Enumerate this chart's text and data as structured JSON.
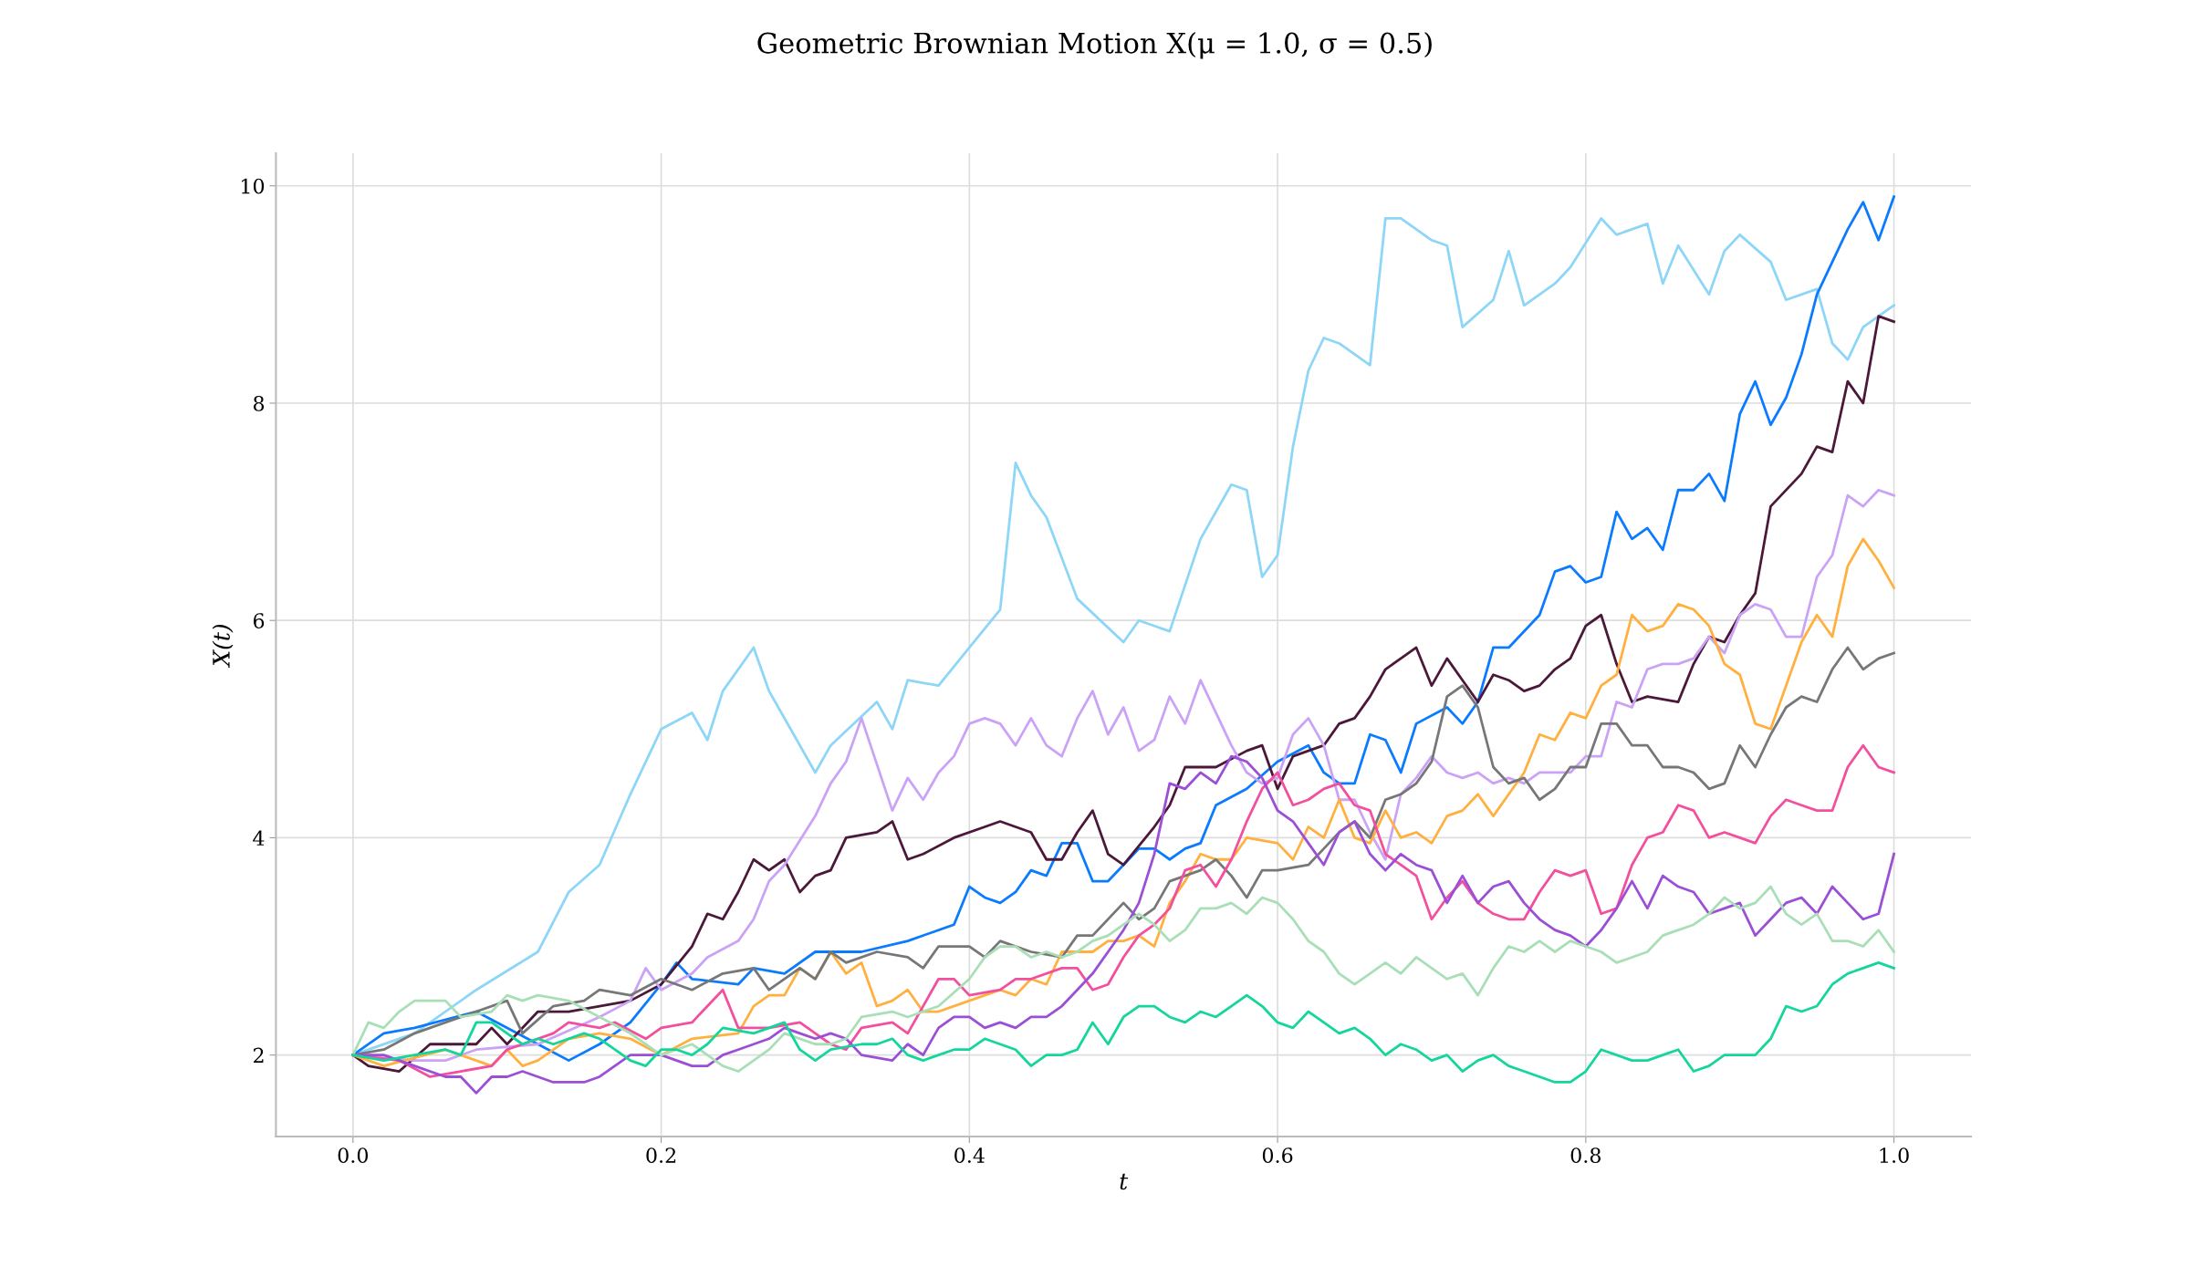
{
  "chart_data": {
    "type": "line",
    "title": "Geometric Brownian Motion X(μ = 1.0, σ = 0.5)",
    "xlabel": "t",
    "ylabel": "X(t)",
    "xlim": [
      -0.05,
      1.05
    ],
    "ylim": [
      1.25,
      10.3
    ],
    "xticks": [
      {
        "value": 0,
        "label": "0.0"
      },
      0.2,
      0.4,
      0.6,
      0.8,
      {
        "value": 1,
        "label": "1.0"
      }
    ],
    "yticks": [
      2,
      4,
      6,
      8,
      10
    ],
    "grid": true,
    "marker": "none",
    "line_style": "solid",
    "series": [
      {
        "color": "#8dd6f7",
        "x": [
          0,
          0.04,
          0.08,
          0.12,
          0.14,
          0.16,
          0.18,
          0.2,
          0.22,
          0.23,
          0.24,
          0.26,
          0.27,
          0.3,
          0.31,
          0.34,
          0.35,
          0.36,
          0.38,
          0.4,
          0.42,
          0.43,
          0.44,
          0.45,
          0.47,
          0.5,
          0.51,
          0.53,
          0.55,
          0.57,
          0.58,
          0.59,
          0.6,
          0.61,
          0.62,
          0.63,
          0.64,
          0.66,
          0.67,
          0.68,
          0.7,
          0.71,
          0.72,
          0.74,
          0.75,
          0.76,
          0.78,
          0.79,
          0.81,
          0.82,
          0.84,
          0.85,
          0.86,
          0.88,
          0.89,
          0.9,
          0.92,
          0.93,
          0.95,
          0.96,
          0.97,
          0.98,
          1.0
        ],
        "values": [
          2,
          2.2,
          2.6,
          2.95,
          3.5,
          3.75,
          4.4,
          5.0,
          5.15,
          4.9,
          5.35,
          5.75,
          5.35,
          4.6,
          4.85,
          5.25,
          5.0,
          5.45,
          5.4,
          5.75,
          6.1,
          7.45,
          7.15,
          6.95,
          6.2,
          5.8,
          6.0,
          5.9,
          6.75,
          7.25,
          7.2,
          6.4,
          6.6,
          7.6,
          8.3,
          8.6,
          8.55,
          8.35,
          9.7,
          9.7,
          9.5,
          9.45,
          8.7,
          8.95,
          9.4,
          8.9,
          9.1,
          9.25,
          9.7,
          9.55,
          9.65,
          9.1,
          9.45,
          9.0,
          9.4,
          9.55,
          9.3,
          8.95,
          9.05,
          8.55,
          8.4,
          8.7,
          8.9
        ]
      },
      {
        "color": "#0a7bff",
        "x": [
          0,
          0.02,
          0.04,
          0.08,
          0.12,
          0.14,
          0.16,
          0.18,
          0.2,
          0.21,
          0.22,
          0.25,
          0.26,
          0.28,
          0.3,
          0.33,
          0.36,
          0.39,
          0.4,
          0.41,
          0.42,
          0.43,
          0.44,
          0.45,
          0.46,
          0.47,
          0.48,
          0.49,
          0.5,
          0.51,
          0.52,
          0.53,
          0.54,
          0.55,
          0.56,
          0.58,
          0.6,
          0.62,
          0.63,
          0.64,
          0.65,
          0.66,
          0.67,
          0.68,
          0.69,
          0.71,
          0.72,
          0.73,
          0.74,
          0.75,
          0.77,
          0.78,
          0.79,
          0.8,
          0.81,
          0.82,
          0.83,
          0.84,
          0.85,
          0.86,
          0.87,
          0.88,
          0.89,
          0.9,
          0.91,
          0.92,
          0.93,
          0.94,
          0.95,
          0.96,
          0.97,
          0.98,
          0.99,
          1.0
        ],
        "values": [
          2,
          2.2,
          2.25,
          2.4,
          2.1,
          1.95,
          2.1,
          2.3,
          2.65,
          2.85,
          2.7,
          2.65,
          2.8,
          2.75,
          2.95,
          2.95,
          3.05,
          3.2,
          3.55,
          3.45,
          3.4,
          3.5,
          3.7,
          3.65,
          3.95,
          3.95,
          3.6,
          3.6,
          3.75,
          3.9,
          3.9,
          3.8,
          3.9,
          3.95,
          4.3,
          4.45,
          4.7,
          4.85,
          4.6,
          4.5,
          4.5,
          4.95,
          4.9,
          4.6,
          5.05,
          5.2,
          5.05,
          5.25,
          5.75,
          5.75,
          6.05,
          6.45,
          6.5,
          6.35,
          6.4,
          7.0,
          6.75,
          6.85,
          6.65,
          7.2,
          7.2,
          7.35,
          7.1,
          7.9,
          8.2,
          7.8,
          8.05,
          8.45,
          9.0,
          9.3,
          9.6,
          9.85,
          9.5,
          9.9
        ]
      },
      {
        "color": "#4b1839",
        "x": [
          0,
          0.01,
          0.03,
          0.05,
          0.08,
          0.09,
          0.1,
          0.12,
          0.14,
          0.16,
          0.18,
          0.2,
          0.22,
          0.23,
          0.24,
          0.25,
          0.26,
          0.27,
          0.28,
          0.29,
          0.3,
          0.31,
          0.32,
          0.34,
          0.35,
          0.36,
          0.37,
          0.39,
          0.41,
          0.42,
          0.43,
          0.44,
          0.45,
          0.46,
          0.47,
          0.48,
          0.49,
          0.5,
          0.52,
          0.53,
          0.54,
          0.56,
          0.58,
          0.59,
          0.6,
          0.61,
          0.62,
          0.63,
          0.64,
          0.65,
          0.66,
          0.67,
          0.68,
          0.69,
          0.7,
          0.71,
          0.72,
          0.73,
          0.74,
          0.75,
          0.76,
          0.77,
          0.78,
          0.79,
          0.8,
          0.81,
          0.82,
          0.83,
          0.84,
          0.86,
          0.87,
          0.88,
          0.89,
          0.9,
          0.91,
          0.92,
          0.94,
          0.95,
          0.96,
          0.97,
          0.98,
          0.99,
          1.0
        ],
        "values": [
          2,
          1.9,
          1.85,
          2.1,
          2.1,
          2.25,
          2.1,
          2.4,
          2.4,
          2.45,
          2.5,
          2.65,
          3.0,
          3.3,
          3.25,
          3.5,
          3.8,
          3.7,
          3.8,
          3.5,
          3.65,
          3.7,
          4.0,
          4.05,
          4.15,
          3.8,
          3.85,
          4.0,
          4.1,
          4.15,
          4.1,
          4.05,
          3.8,
          3.8,
          4.05,
          4.25,
          3.85,
          3.75,
          4.1,
          4.3,
          4.65,
          4.65,
          4.8,
          4.85,
          4.45,
          4.75,
          4.8,
          4.85,
          5.05,
          5.1,
          5.3,
          5.55,
          5.65,
          5.75,
          5.4,
          5.65,
          5.45,
          5.25,
          5.5,
          5.45,
          5.35,
          5.4,
          5.55,
          5.65,
          5.95,
          6.05,
          5.6,
          5.25,
          5.3,
          5.25,
          5.6,
          5.85,
          5.8,
          6.05,
          6.25,
          7.05,
          7.35,
          7.6,
          7.55,
          8.2,
          8.0,
          8.8,
          8.75
        ]
      },
      {
        "color": "#cba3f6",
        "x": [
          0,
          0.04,
          0.06,
          0.08,
          0.12,
          0.16,
          0.18,
          0.19,
          0.2,
          0.22,
          0.23,
          0.25,
          0.26,
          0.27,
          0.28,
          0.3,
          0.31,
          0.32,
          0.33,
          0.35,
          0.36,
          0.37,
          0.38,
          0.39,
          0.4,
          0.41,
          0.42,
          0.43,
          0.44,
          0.45,
          0.46,
          0.47,
          0.48,
          0.49,
          0.5,
          0.51,
          0.52,
          0.53,
          0.54,
          0.55,
          0.56,
          0.57,
          0.58,
          0.59,
          0.6,
          0.61,
          0.62,
          0.63,
          0.64,
          0.65,
          0.66,
          0.67,
          0.68,
          0.69,
          0.7,
          0.71,
          0.72,
          0.73,
          0.74,
          0.75,
          0.76,
          0.77,
          0.79,
          0.8,
          0.81,
          0.82,
          0.83,
          0.84,
          0.85,
          0.86,
          0.87,
          0.88,
          0.89,
          0.9,
          0.91,
          0.92,
          0.93,
          0.94,
          0.95,
          0.96,
          0.97,
          0.98,
          0.99,
          1.0
        ],
        "values": [
          2,
          1.95,
          1.95,
          2.05,
          2.1,
          2.35,
          2.5,
          2.8,
          2.6,
          2.75,
          2.9,
          3.05,
          3.25,
          3.6,
          3.75,
          4.2,
          4.5,
          4.7,
          5.1,
          4.25,
          4.55,
          4.35,
          4.6,
          4.75,
          5.05,
          5.1,
          5.05,
          4.85,
          5.1,
          4.85,
          4.75,
          5.1,
          5.35,
          4.95,
          5.2,
          4.8,
          4.9,
          5.3,
          5.05,
          5.45,
          5.15,
          4.85,
          4.6,
          4.5,
          4.55,
          4.95,
          5.1,
          4.85,
          4.35,
          4.35,
          4.05,
          3.8,
          4.4,
          4.55,
          4.75,
          4.6,
          4.55,
          4.6,
          4.5,
          4.55,
          4.5,
          4.6,
          4.6,
          4.75,
          4.75,
          5.25,
          5.2,
          5.55,
          5.6,
          5.6,
          5.65,
          5.85,
          5.7,
          6.05,
          6.15,
          6.1,
          5.85,
          5.85,
          6.4,
          6.6,
          7.15,
          7.05,
          7.2,
          7.15
        ]
      },
      {
        "color": "#ffb03f",
        "x": [
          0,
          0.02,
          0.06,
          0.09,
          0.1,
          0.11,
          0.12,
          0.14,
          0.16,
          0.18,
          0.2,
          0.22,
          0.25,
          0.26,
          0.27,
          0.28,
          0.29,
          0.3,
          0.31,
          0.32,
          0.33,
          0.34,
          0.35,
          0.36,
          0.37,
          0.38,
          0.4,
          0.42,
          0.43,
          0.44,
          0.45,
          0.46,
          0.48,
          0.49,
          0.5,
          0.51,
          0.52,
          0.53,
          0.54,
          0.55,
          0.56,
          0.57,
          0.58,
          0.6,
          0.61,
          0.62,
          0.63,
          0.64,
          0.65,
          0.66,
          0.67,
          0.68,
          0.69,
          0.7,
          0.71,
          0.72,
          0.73,
          0.74,
          0.75,
          0.76,
          0.77,
          0.78,
          0.79,
          0.8,
          0.81,
          0.82,
          0.83,
          0.84,
          0.85,
          0.86,
          0.87,
          0.88,
          0.89,
          0.9,
          0.91,
          0.92,
          0.93,
          0.94,
          0.95,
          0.96,
          0.97,
          0.98,
          0.99,
          1.0
        ],
        "values": [
          2,
          1.9,
          2.05,
          1.9,
          2.05,
          1.9,
          1.95,
          2.15,
          2.2,
          2.15,
          2.0,
          2.15,
          2.2,
          2.45,
          2.55,
          2.55,
          2.8,
          2.7,
          2.95,
          2.75,
          2.85,
          2.45,
          2.5,
          2.6,
          2.4,
          2.4,
          2.5,
          2.6,
          2.55,
          2.7,
          2.65,
          2.95,
          2.95,
          3.05,
          3.05,
          3.1,
          3.0,
          3.4,
          3.6,
          3.85,
          3.8,
          3.8,
          4.0,
          3.95,
          3.8,
          4.1,
          4.0,
          4.35,
          4.0,
          3.95,
          4.25,
          4.0,
          4.05,
          3.95,
          4.2,
          4.25,
          4.4,
          4.2,
          4.4,
          4.6,
          4.95,
          4.9,
          5.15,
          5.1,
          5.4,
          5.5,
          6.05,
          5.9,
          5.95,
          6.15,
          6.1,
          5.95,
          5.6,
          5.5,
          5.05,
          5.0,
          5.4,
          5.8,
          6.05,
          5.85,
          6.5,
          6.75,
          6.55,
          6.3
        ]
      },
      {
        "color": "#777777",
        "x": [
          0,
          0.02,
          0.04,
          0.06,
          0.08,
          0.1,
          0.11,
          0.13,
          0.15,
          0.16,
          0.18,
          0.2,
          0.22,
          0.24,
          0.26,
          0.27,
          0.29,
          0.3,
          0.31,
          0.32,
          0.34,
          0.36,
          0.37,
          0.38,
          0.4,
          0.41,
          0.42,
          0.44,
          0.46,
          0.47,
          0.48,
          0.5,
          0.51,
          0.52,
          0.53,
          0.55,
          0.56,
          0.57,
          0.58,
          0.59,
          0.6,
          0.62,
          0.63,
          0.64,
          0.65,
          0.66,
          0.67,
          0.68,
          0.69,
          0.7,
          0.71,
          0.72,
          0.73,
          0.74,
          0.75,
          0.76,
          0.77,
          0.78,
          0.79,
          0.8,
          0.81,
          0.82,
          0.83,
          0.84,
          0.85,
          0.86,
          0.87,
          0.88,
          0.89,
          0.9,
          0.91,
          0.92,
          0.93,
          0.94,
          0.95,
          0.96,
          0.97,
          0.98,
          0.99,
          1.0
        ],
        "values": [
          2,
          2.05,
          2.2,
          2.3,
          2.4,
          2.5,
          2.2,
          2.45,
          2.5,
          2.6,
          2.55,
          2.7,
          2.6,
          2.75,
          2.8,
          2.6,
          2.8,
          2.7,
          2.95,
          2.85,
          2.95,
          2.9,
          2.8,
          3.0,
          3.0,
          2.9,
          3.05,
          2.95,
          2.9,
          3.1,
          3.1,
          3.4,
          3.25,
          3.35,
          3.6,
          3.7,
          3.8,
          3.65,
          3.45,
          3.7,
          3.7,
          3.75,
          3.9,
          4.05,
          4.15,
          4.0,
          4.35,
          4.4,
          4.5,
          4.7,
          5.3,
          5.4,
          5.2,
          4.65,
          4.5,
          4.55,
          4.35,
          4.45,
          4.65,
          4.65,
          5.05,
          5.05,
          4.85,
          4.85,
          4.65,
          4.65,
          4.6,
          4.45,
          4.5,
          4.85,
          4.65,
          4.95,
          5.2,
          5.3,
          5.25,
          5.55,
          5.75,
          5.55,
          5.65,
          5.7
        ]
      },
      {
        "color": "#f2509e",
        "x": [
          0,
          0.03,
          0.05,
          0.07,
          0.09,
          0.1,
          0.11,
          0.13,
          0.14,
          0.16,
          0.17,
          0.19,
          0.2,
          0.22,
          0.23,
          0.24,
          0.25,
          0.27,
          0.29,
          0.3,
          0.31,
          0.32,
          0.33,
          0.35,
          0.36,
          0.37,
          0.38,
          0.39,
          0.4,
          0.42,
          0.43,
          0.44,
          0.46,
          0.47,
          0.48,
          0.49,
          0.5,
          0.51,
          0.52,
          0.53,
          0.54,
          0.55,
          0.56,
          0.57,
          0.58,
          0.59,
          0.6,
          0.61,
          0.62,
          0.63,
          0.64,
          0.65,
          0.66,
          0.67,
          0.68,
          0.69,
          0.7,
          0.71,
          0.72,
          0.73,
          0.74,
          0.75,
          0.76,
          0.77,
          0.78,
          0.79,
          0.8,
          0.81,
          0.82,
          0.83,
          0.84,
          0.85,
          0.86,
          0.87,
          0.88,
          0.89,
          0.9,
          0.91,
          0.92,
          0.93,
          0.94,
          0.95,
          0.96,
          0.97,
          0.98,
          0.99,
          1.0
        ],
        "values": [
          2,
          1.95,
          1.8,
          1.85,
          1.9,
          2.05,
          2.1,
          2.2,
          2.3,
          2.25,
          2.3,
          2.15,
          2.25,
          2.3,
          2.45,
          2.6,
          2.25,
          2.25,
          2.3,
          2.2,
          2.1,
          2.05,
          2.25,
          2.3,
          2.2,
          2.45,
          2.7,
          2.7,
          2.55,
          2.6,
          2.7,
          2.7,
          2.8,
          2.8,
          2.6,
          2.65,
          2.9,
          3.1,
          3.2,
          3.35,
          3.7,
          3.75,
          3.55,
          3.8,
          4.15,
          4.45,
          4.6,
          4.3,
          4.35,
          4.45,
          4.5,
          4.3,
          4.25,
          3.85,
          3.75,
          3.65,
          3.25,
          3.45,
          3.6,
          3.4,
          3.3,
          3.25,
          3.25,
          3.5,
          3.7,
          3.65,
          3.7,
          3.3,
          3.35,
          3.75,
          4.0,
          4.05,
          4.3,
          4.25,
          4.0,
          4.05,
          4.0,
          3.95,
          4.2,
          4.35,
          4.3,
          4.25,
          4.25,
          4.65,
          4.85,
          4.65,
          4.6
        ]
      },
      {
        "color": "#9b4fd6",
        "x": [
          0,
          0.02,
          0.04,
          0.06,
          0.07,
          0.08,
          0.09,
          0.1,
          0.11,
          0.12,
          0.13,
          0.15,
          0.16,
          0.18,
          0.2,
          0.22,
          0.23,
          0.24,
          0.25,
          0.27,
          0.28,
          0.29,
          0.3,
          0.31,
          0.32,
          0.33,
          0.35,
          0.36,
          0.37,
          0.38,
          0.39,
          0.4,
          0.41,
          0.42,
          0.43,
          0.44,
          0.45,
          0.46,
          0.47,
          0.48,
          0.49,
          0.5,
          0.51,
          0.52,
          0.53,
          0.54,
          0.55,
          0.56,
          0.57,
          0.58,
          0.59,
          0.6,
          0.61,
          0.62,
          0.63,
          0.64,
          0.65,
          0.66,
          0.67,
          0.68,
          0.69,
          0.7,
          0.71,
          0.72,
          0.73,
          0.74,
          0.75,
          0.76,
          0.77,
          0.78,
          0.79,
          0.8,
          0.81,
          0.82,
          0.83,
          0.84,
          0.85,
          0.86,
          0.87,
          0.88,
          0.89,
          0.9,
          0.91,
          0.92,
          0.93,
          0.94,
          0.95,
          0.96,
          0.97,
          0.98,
          0.99,
          1.0
        ],
        "values": [
          2,
          2.0,
          1.9,
          1.8,
          1.8,
          1.65,
          1.8,
          1.8,
          1.85,
          1.8,
          1.75,
          1.75,
          1.8,
          2.0,
          2.0,
          1.9,
          1.9,
          2.0,
          2.05,
          2.15,
          2.25,
          2.2,
          2.15,
          2.2,
          2.15,
          2.0,
          1.95,
          2.1,
          2.0,
          2.25,
          2.35,
          2.35,
          2.25,
          2.3,
          2.25,
          2.35,
          2.35,
          2.45,
          2.6,
          2.75,
          2.95,
          3.15,
          3.4,
          3.85,
          4.5,
          4.45,
          4.6,
          4.5,
          4.75,
          4.7,
          4.55,
          4.25,
          4.15,
          3.95,
          3.75,
          4.05,
          4.15,
          3.85,
          3.7,
          3.85,
          3.75,
          3.7,
          3.4,
          3.65,
          3.4,
          3.55,
          3.6,
          3.4,
          3.25,
          3.15,
          3.1,
          3.0,
          3.15,
          3.35,
          3.6,
          3.35,
          3.65,
          3.55,
          3.5,
          3.3,
          3.35,
          3.4,
          3.1,
          3.25,
          3.4,
          3.45,
          3.3,
          3.55,
          3.4,
          3.25,
          3.3,
          3.85
        ]
      },
      {
        "color": "#a9dfb6",
        "x": [
          0,
          0.01,
          0.02,
          0.03,
          0.04,
          0.06,
          0.07,
          0.09,
          0.1,
          0.11,
          0.12,
          0.14,
          0.16,
          0.18,
          0.2,
          0.21,
          0.22,
          0.23,
          0.24,
          0.25,
          0.26,
          0.27,
          0.28,
          0.3,
          0.31,
          0.32,
          0.33,
          0.35,
          0.36,
          0.37,
          0.38,
          0.4,
          0.41,
          0.42,
          0.43,
          0.44,
          0.45,
          0.46,
          0.47,
          0.48,
          0.49,
          0.5,
          0.51,
          0.52,
          0.53,
          0.54,
          0.55,
          0.56,
          0.57,
          0.58,
          0.59,
          0.6,
          0.61,
          0.62,
          0.63,
          0.64,
          0.65,
          0.66,
          0.67,
          0.68,
          0.69,
          0.7,
          0.71,
          0.72,
          0.73,
          0.74,
          0.75,
          0.76,
          0.77,
          0.78,
          0.79,
          0.8,
          0.81,
          0.82,
          0.83,
          0.84,
          0.85,
          0.86,
          0.87,
          0.88,
          0.89,
          0.9,
          0.91,
          0.92,
          0.93,
          0.94,
          0.95,
          0.96,
          0.97,
          0.98,
          0.99,
          1.0
        ],
        "values": [
          2,
          2.3,
          2.25,
          2.4,
          2.5,
          2.5,
          2.35,
          2.4,
          2.55,
          2.5,
          2.55,
          2.5,
          2.35,
          2.2,
          2.0,
          2.05,
          2.1,
          2.0,
          1.9,
          1.85,
          1.95,
          2.05,
          2.2,
          2.1,
          2.1,
          2.15,
          2.35,
          2.4,
          2.35,
          2.4,
          2.45,
          2.7,
          2.9,
          3.0,
          3.0,
          2.9,
          2.95,
          2.9,
          2.95,
          3.05,
          3.1,
          3.2,
          3.3,
          3.2,
          3.05,
          3.15,
          3.35,
          3.35,
          3.4,
          3.3,
          3.45,
          3.4,
          3.25,
          3.05,
          2.95,
          2.75,
          2.65,
          2.75,
          2.85,
          2.75,
          2.9,
          2.8,
          2.7,
          2.75,
          2.55,
          2.8,
          3.0,
          2.95,
          3.05,
          2.95,
          3.05,
          3.0,
          2.95,
          2.85,
          2.9,
          2.95,
          3.1,
          3.15,
          3.2,
          3.3,
          3.45,
          3.35,
          3.4,
          3.55,
          3.3,
          3.2,
          3.3,
          3.05,
          3.05,
          3.0,
          3.15,
          2.95
        ]
      },
      {
        "color": "#14d69c",
        "x": [
          0,
          0.02,
          0.04,
          0.06,
          0.07,
          0.08,
          0.09,
          0.1,
          0.11,
          0.12,
          0.13,
          0.15,
          0.16,
          0.17,
          0.18,
          0.19,
          0.2,
          0.21,
          0.22,
          0.23,
          0.24,
          0.26,
          0.27,
          0.28,
          0.29,
          0.3,
          0.31,
          0.33,
          0.34,
          0.35,
          0.36,
          0.37,
          0.38,
          0.39,
          0.4,
          0.41,
          0.42,
          0.43,
          0.44,
          0.45,
          0.46,
          0.47,
          0.48,
          0.49,
          0.5,
          0.51,
          0.52,
          0.53,
          0.54,
          0.55,
          0.56,
          0.57,
          0.58,
          0.59,
          0.6,
          0.61,
          0.62,
          0.63,
          0.64,
          0.65,
          0.66,
          0.67,
          0.68,
          0.69,
          0.7,
          0.71,
          0.72,
          0.73,
          0.74,
          0.75,
          0.76,
          0.77,
          0.78,
          0.79,
          0.8,
          0.81,
          0.82,
          0.83,
          0.84,
          0.85,
          0.86,
          0.87,
          0.88,
          0.89,
          0.9,
          0.91,
          0.92,
          0.93,
          0.94,
          0.95,
          0.96,
          0.97,
          0.98,
          0.99,
          1.0
        ],
        "values": [
          2,
          1.95,
          2.0,
          2.05,
          2.0,
          2.3,
          2.3,
          2.2,
          2.1,
          2.15,
          2.1,
          2.2,
          2.15,
          2.05,
          1.95,
          1.9,
          2.05,
          2.05,
          2.0,
          2.1,
          2.25,
          2.2,
          2.25,
          2.3,
          2.05,
          1.95,
          2.05,
          2.1,
          2.1,
          2.15,
          2.0,
          1.95,
          2.0,
          2.05,
          2.05,
          2.15,
          2.1,
          2.05,
          1.9,
          2.0,
          2.0,
          2.05,
          2.3,
          2.1,
          2.35,
          2.45,
          2.45,
          2.35,
          2.3,
          2.4,
          2.35,
          2.45,
          2.55,
          2.45,
          2.3,
          2.25,
          2.4,
          2.3,
          2.2,
          2.25,
          2.15,
          2.0,
          2.1,
          2.05,
          1.95,
          2.0,
          1.85,
          1.95,
          2.0,
          1.9,
          1.85,
          1.8,
          1.75,
          1.75,
          1.85,
          2.05,
          2.0,
          1.95,
          1.95,
          2.0,
          2.05,
          1.85,
          1.9,
          2.0,
          2.0,
          2.0,
          2.15,
          2.45,
          2.4,
          2.45,
          2.65,
          2.75,
          2.8,
          2.85,
          2.8
        ]
      }
    ]
  }
}
